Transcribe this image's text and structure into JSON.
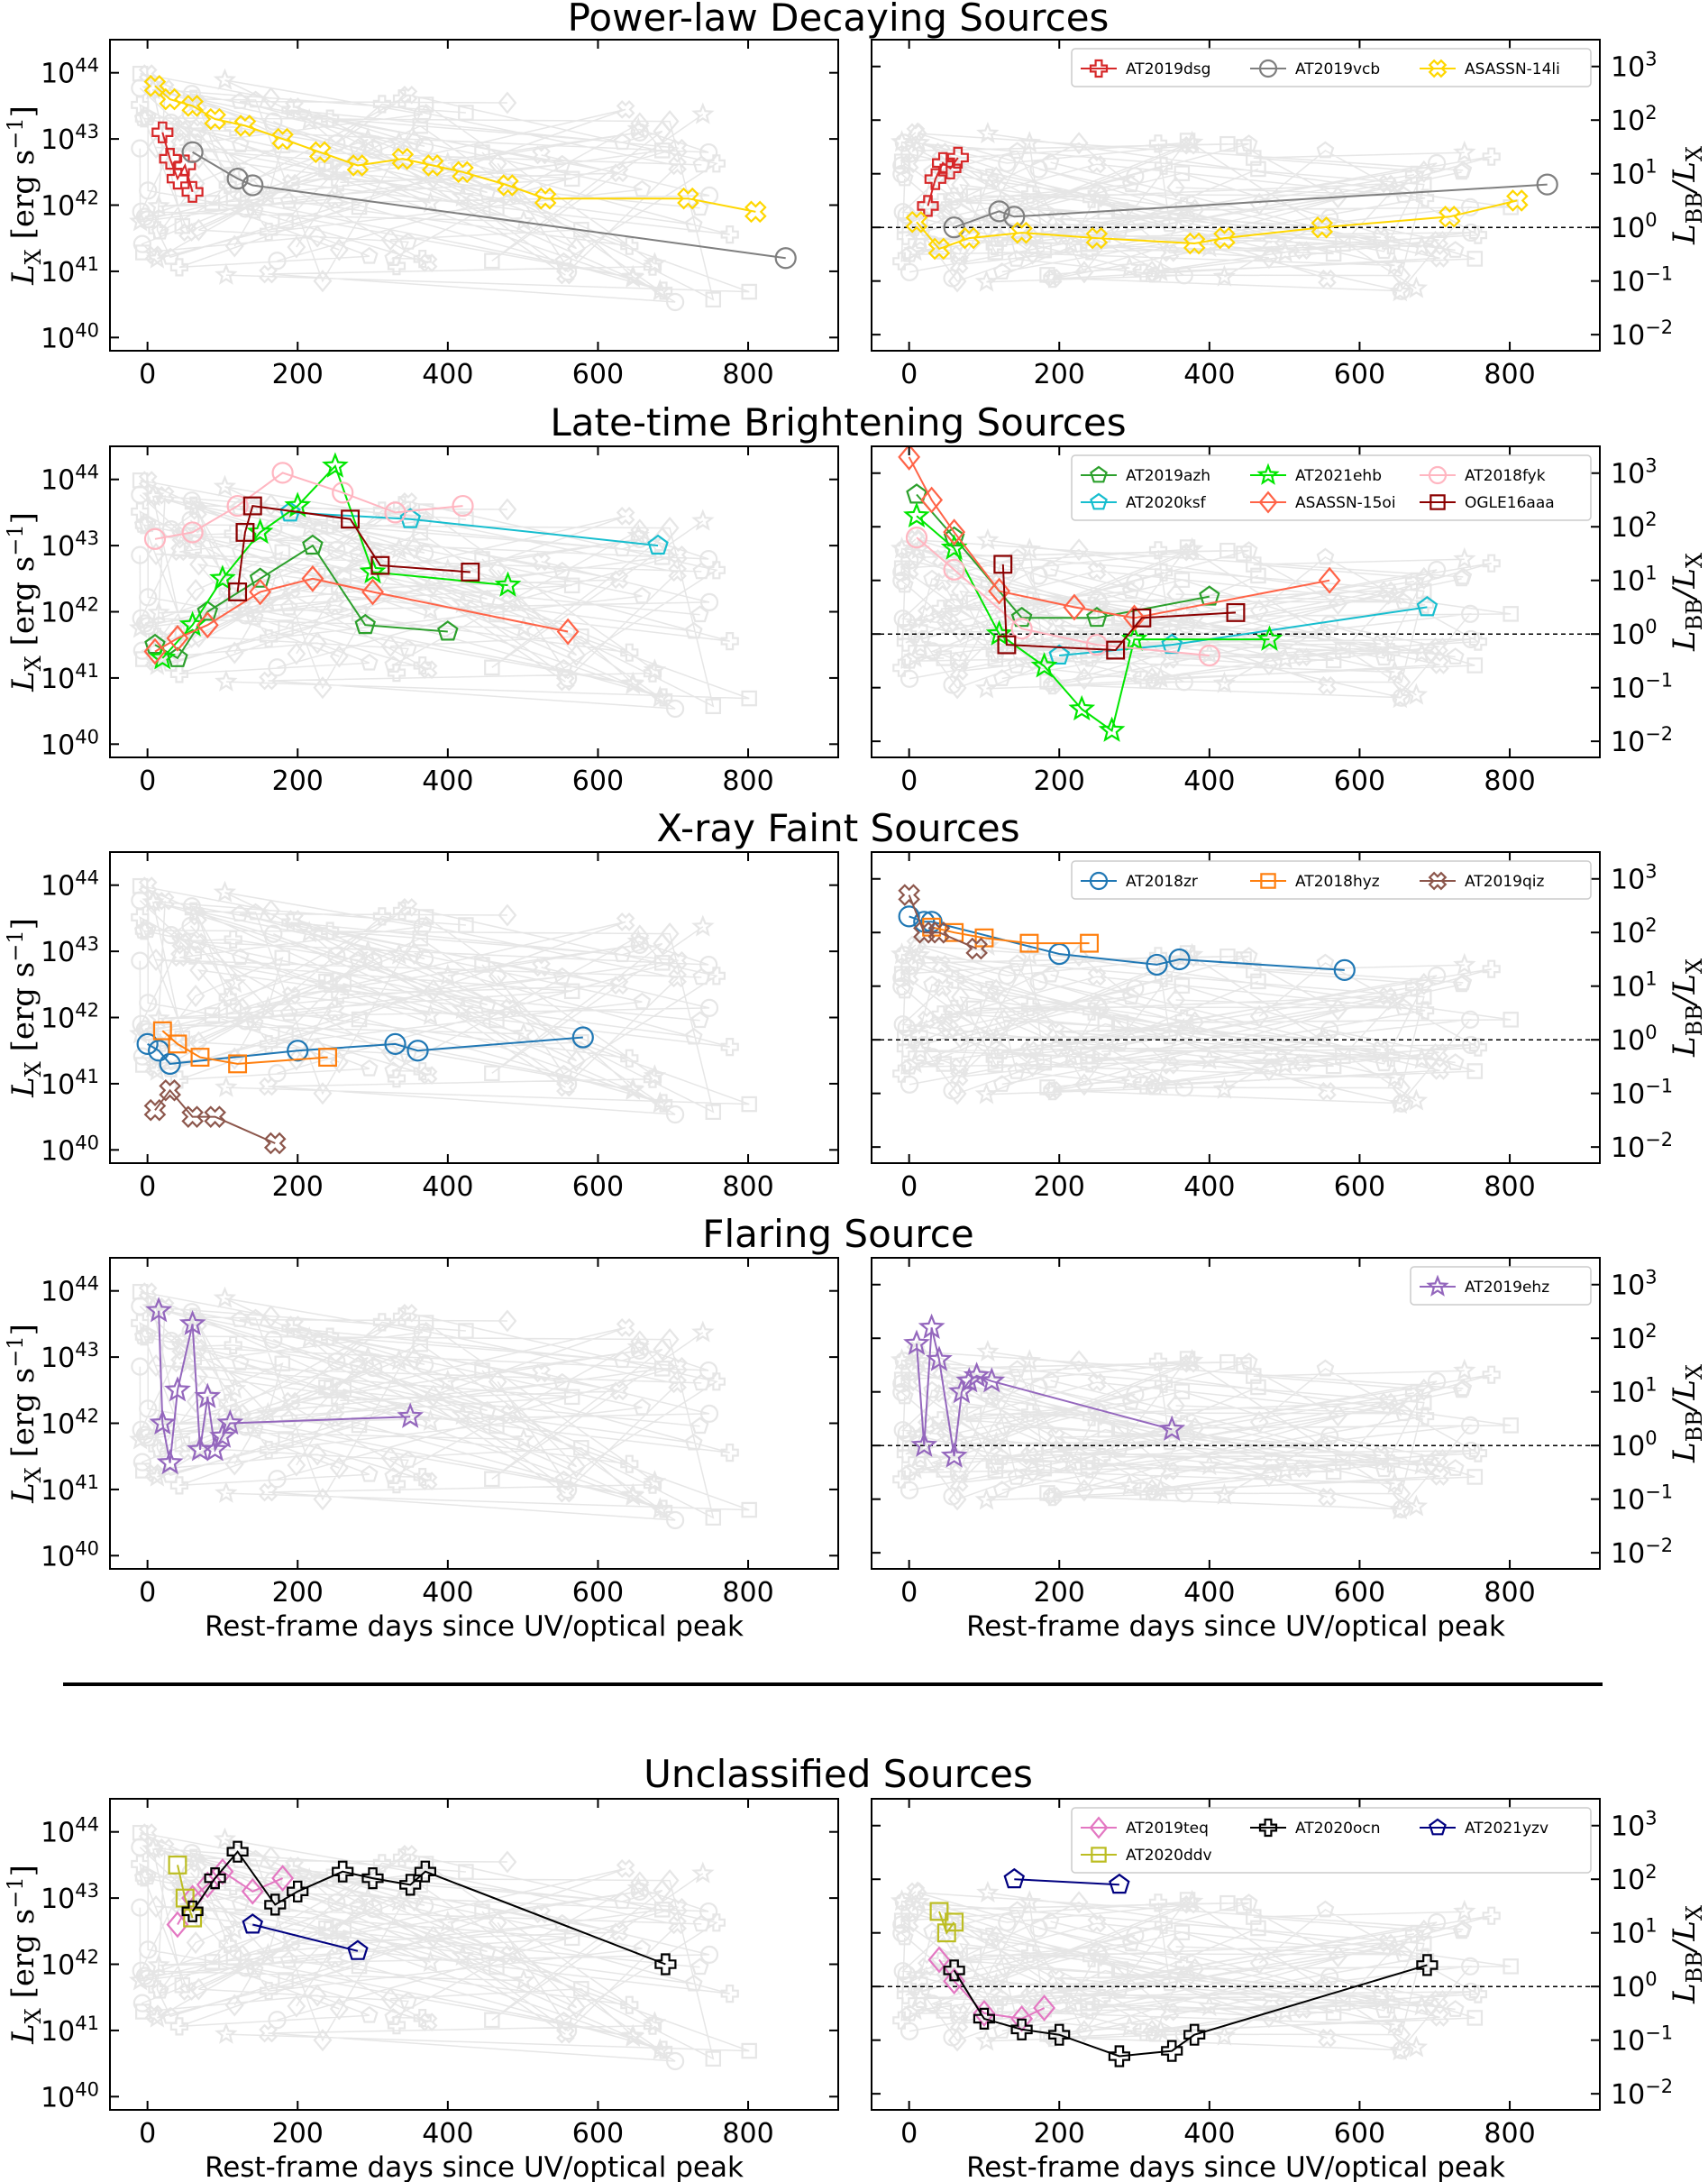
{
  "sections": [
    {
      "title": "Power-law Decaying Sources"
    },
    {
      "title": "Late-time Brightening Sources"
    },
    {
      "title": "X-ray Faint Sources"
    },
    {
      "title": "Flaring Source"
    },
    {
      "title": "Unclassified Sources"
    }
  ],
  "axes": {
    "left_ylabel_main": "L",
    "left_ylabel_sub": "X",
    "left_ylabel_unit": "[erg s",
    "left_ylabel_unit_sup": "−1",
    "left_ylabel_close": "]",
    "right_ylabel_L": "L",
    "right_ylabel_sub1": "BB",
    "right_ylabel_slash": "/L",
    "right_ylabel_sub2": "X",
    "xlabel": "Rest-frame days since UV/optical peak",
    "x_ticks": [
      "0",
      "200",
      "400",
      "600",
      "800"
    ],
    "left_y_ticks": [
      {
        "base": "10",
        "exp": "40"
      },
      {
        "base": "10",
        "exp": "41"
      },
      {
        "base": "10",
        "exp": "42"
      },
      {
        "base": "10",
        "exp": "43"
      },
      {
        "base": "10",
        "exp": "44"
      }
    ],
    "right_y_ticks": [
      {
        "base": "10",
        "exp": "−2"
      },
      {
        "base": "10",
        "exp": "−1"
      },
      {
        "base": "10",
        "exp": "0"
      },
      {
        "base": "10",
        "exp": "1"
      },
      {
        "base": "10",
        "exp": "2"
      },
      {
        "base": "10",
        "exp": "3"
      }
    ]
  },
  "colors": {
    "background_points": "#d9d9d9",
    "AT2019dsg": "#d62728",
    "AT2019vcb": "#7f7f7f",
    "ASASSN-14li": "#ffd700",
    "AT2019azh": "#2ca02c",
    "AT2020ksf": "#17becf",
    "AT2021ehb": "#00e600",
    "ASASSN-15oi": "#ff6347",
    "AT2018fyk": "#ffb6c1",
    "OGLE16aaa": "#8b0000",
    "AT2018zr": "#1f77b4",
    "AT2018hyz": "#ff7f0e",
    "AT2019qiz": "#8c564b",
    "AT2019ehz": "#9467bd",
    "AT2019teq": "#e377c2",
    "AT2020ddv": "#bcbd22",
    "AT2020ocn": "#000000",
    "AT2021yzv": "#000080"
  },
  "chart_data": [
    {
      "type": "scatter",
      "panel": "Power-law Decaying Sources — L_X",
      "xlim": [
        -50,
        920
      ],
      "ylim_log10": [
        39.8,
        44.5
      ],
      "ylabel": "L_X [erg s^-1]",
      "xlabel": "",
      "series": [
        {
          "name": "AT2019dsg",
          "marker": "plus",
          "x": [
            20,
            30,
            40,
            50,
            60
          ],
          "y": [
            43.1,
            42.7,
            42.4,
            42.6,
            42.2
          ]
        },
        {
          "name": "AT2019vcb",
          "marker": "circle",
          "x": [
            60,
            120,
            140,
            850
          ],
          "y": [
            42.8,
            42.4,
            42.3,
            41.2
          ]
        },
        {
          "name": "ASASSN-14li",
          "marker": "x",
          "x": [
            10,
            30,
            60,
            90,
            130,
            180,
            230,
            280,
            340,
            380,
            420,
            480,
            530,
            720,
            810
          ],
          "y": [
            43.8,
            43.6,
            43.5,
            43.3,
            43.2,
            43.0,
            42.8,
            42.6,
            42.7,
            42.6,
            42.5,
            42.3,
            42.1,
            42.1,
            41.9
          ]
        }
      ]
    },
    {
      "type": "scatter",
      "panel": "Power-law Decaying Sources — L_BB/L_X",
      "xlim": [
        -50,
        920
      ],
      "ylim_log10": [
        -2.3,
        3.5
      ],
      "ylabel": "L_BB/L_X",
      "xlabel": "",
      "series": [
        {
          "name": "AT2019dsg",
          "marker": "plus",
          "x": [
            25,
            35,
            45,
            55,
            65
          ],
          "y": [
            0.4,
            0.9,
            1.2,
            1.1,
            1.3
          ]
        },
        {
          "name": "AT2019vcb",
          "marker": "circle",
          "x": [
            60,
            120,
            140,
            850
          ],
          "y": [
            0.0,
            0.3,
            0.2,
            0.8
          ]
        },
        {
          "name": "ASASSN-14li",
          "marker": "x",
          "x": [
            10,
            40,
            80,
            150,
            250,
            380,
            420,
            550,
            720,
            810
          ],
          "y": [
            0.1,
            -0.4,
            -0.2,
            -0.1,
            -0.2,
            -0.3,
            -0.2,
            0.0,
            0.2,
            0.5
          ]
        }
      ]
    },
    {
      "type": "scatter",
      "panel": "Late-time Brightening Sources — L_X",
      "xlim": [
        -50,
        920
      ],
      "ylim_log10": [
        39.8,
        44.5
      ],
      "xlabel": "",
      "series": [
        {
          "name": "AT2019azh",
          "marker": "pentagon",
          "x": [
            10,
            40,
            80,
            150,
            220,
            290,
            400
          ],
          "y": [
            41.5,
            41.3,
            42.0,
            42.5,
            43.0,
            41.8,
            41.7
          ]
        },
        {
          "name": "AT2020ksf",
          "marker": "pentagon",
          "x": [
            190,
            350,
            680
          ],
          "y": [
            43.5,
            43.4,
            43.0
          ]
        },
        {
          "name": "AT2021ehb",
          "marker": "star",
          "x": [
            20,
            60,
            100,
            150,
            200,
            250,
            300,
            480
          ],
          "y": [
            41.3,
            41.8,
            42.5,
            43.2,
            43.6,
            44.2,
            42.6,
            42.4
          ]
        },
        {
          "name": "ASASSN-15oi",
          "marker": "diamond",
          "x": [
            10,
            40,
            80,
            150,
            220,
            300,
            560
          ],
          "y": [
            41.4,
            41.6,
            41.8,
            42.3,
            42.5,
            42.3,
            41.7
          ]
        },
        {
          "name": "AT2018fyk",
          "marker": "circle",
          "x": [
            10,
            60,
            120,
            180,
            260,
            330,
            420
          ],
          "y": [
            43.1,
            43.2,
            43.6,
            44.1,
            43.8,
            43.5,
            43.6
          ]
        },
        {
          "name": "OGLE16aaa",
          "marker": "square",
          "x": [
            120,
            130,
            140,
            270,
            310,
            430
          ],
          "y": [
            42.3,
            43.2,
            43.6,
            43.4,
            42.7,
            42.6
          ]
        }
      ]
    },
    {
      "type": "scatter",
      "panel": "Late-time Brightening Sources — L_BB/L_X",
      "xlim": [
        -50,
        920
      ],
      "ylim_log10": [
        -2.3,
        3.5
      ],
      "xlabel": "",
      "series": [
        {
          "name": "AT2019azh",
          "marker": "pentagon",
          "x": [
            10,
            60,
            150,
            250,
            400
          ],
          "y": [
            2.6,
            1.8,
            0.3,
            0.3,
            0.7
          ]
        },
        {
          "name": "AT2020ksf",
          "marker": "pentagon",
          "x": [
            200,
            350,
            690
          ],
          "y": [
            -0.4,
            -0.2,
            0.5
          ]
        },
        {
          "name": "AT2021ehb",
          "marker": "star",
          "x": [
            10,
            60,
            120,
            180,
            230,
            270,
            300,
            480
          ],
          "y": [
            2.2,
            1.6,
            0.0,
            -0.6,
            -1.4,
            -1.8,
            -0.1,
            -0.1
          ]
        },
        {
          "name": "ASASSN-15oi",
          "marker": "diamond",
          "x": [
            0,
            30,
            60,
            120,
            220,
            300,
            560
          ],
          "y": [
            3.3,
            2.5,
            1.9,
            0.8,
            0.5,
            0.3,
            1.0
          ]
        },
        {
          "name": "AT2018fyk",
          "marker": "circle",
          "x": [
            10,
            60,
            150,
            250,
            400
          ],
          "y": [
            1.8,
            1.2,
            0.1,
            -0.2,
            -0.4
          ]
        },
        {
          "name": "OGLE16aaa",
          "marker": "square",
          "x": [
            125,
            130,
            275,
            310,
            435
          ],
          "y": [
            1.3,
            -0.2,
            -0.3,
            0.3,
            0.4
          ]
        }
      ]
    },
    {
      "type": "scatter",
      "panel": "X-ray Faint Sources — L_X",
      "xlim": [
        -50,
        920
      ],
      "ylim_log10": [
        39.8,
        44.5
      ],
      "xlabel": "",
      "series": [
        {
          "name": "AT2018zr",
          "marker": "circle",
          "x": [
            0,
            15,
            30,
            200,
            330,
            360,
            580
          ],
          "y": [
            41.6,
            41.5,
            41.3,
            41.5,
            41.6,
            41.5,
            41.7
          ]
        },
        {
          "name": "AT2018hyz",
          "marker": "square",
          "x": [
            20,
            40,
            70,
            120,
            240
          ],
          "y": [
            41.8,
            41.6,
            41.4,
            41.3,
            41.4
          ]
        },
        {
          "name": "AT2019qiz",
          "marker": "x",
          "x": [
            10,
            30,
            60,
            90,
            170
          ],
          "y": [
            40.6,
            40.9,
            40.5,
            40.5,
            40.1
          ]
        }
      ]
    },
    {
      "type": "scatter",
      "panel": "X-ray Faint Sources — L_BB/L_X",
      "xlim": [
        -50,
        920
      ],
      "ylim_log10": [
        -2.3,
        3.5
      ],
      "xlabel": "",
      "series": [
        {
          "name": "AT2018zr",
          "marker": "circle",
          "x": [
            0,
            20,
            30,
            200,
            330,
            360,
            580
          ],
          "y": [
            2.3,
            2.2,
            2.2,
            1.6,
            1.4,
            1.5,
            1.3
          ]
        },
        {
          "name": "AT2018hyz",
          "marker": "square",
          "x": [
            30,
            60,
            100,
            160,
            240
          ],
          "y": [
            2.1,
            2.0,
            1.9,
            1.8,
            1.8
          ]
        },
        {
          "name": "AT2019qiz",
          "marker": "x",
          "x": [
            0,
            20,
            40,
            90
          ],
          "y": [
            2.7,
            2.0,
            2.0,
            1.7
          ]
        }
      ]
    },
    {
      "type": "scatter",
      "panel": "Flaring Source — L_X",
      "xlim": [
        -50,
        920
      ],
      "ylim_log10": [
        39.8,
        44.5
      ],
      "xlabel": "Rest-frame days since UV/optical peak",
      "series": [
        {
          "name": "AT2019ehz",
          "marker": "star",
          "x": [
            15,
            20,
            30,
            40,
            60,
            70,
            80,
            90,
            100,
            110,
            350
          ],
          "y": [
            43.7,
            42.0,
            41.4,
            42.5,
            43.5,
            41.6,
            42.4,
            41.6,
            41.8,
            42.0,
            42.1
          ]
        }
      ]
    },
    {
      "type": "scatter",
      "panel": "Flaring Source — L_BB/L_X",
      "xlim": [
        -50,
        920
      ],
      "ylim_log10": [
        -2.3,
        3.5
      ],
      "xlabel": "Rest-frame days since UV/optical peak",
      "series": [
        {
          "name": "AT2019ehz",
          "marker": "star",
          "x": [
            10,
            20,
            30,
            40,
            60,
            70,
            80,
            90,
            110,
            350
          ],
          "y": [
            1.9,
            0.0,
            2.2,
            1.6,
            -0.2,
            1.0,
            1.2,
            1.3,
            1.2,
            0.3
          ]
        }
      ]
    },
    {
      "type": "scatter",
      "panel": "Unclassified Sources — L_X",
      "xlim": [
        -50,
        920
      ],
      "ylim_log10": [
        39.8,
        44.5
      ],
      "xlabel": "Rest-frame days since UV/optical peak",
      "series": [
        {
          "name": "AT2019teq",
          "marker": "diamond",
          "x": [
            40,
            60,
            80,
            100,
            140,
            180
          ],
          "y": [
            42.6,
            43.0,
            43.2,
            43.4,
            43.1,
            43.3
          ]
        },
        {
          "name": "AT2020ddv",
          "marker": "square",
          "x": [
            40,
            50,
            60
          ],
          "y": [
            43.5,
            43.0,
            42.7
          ]
        },
        {
          "name": "AT2020ocn",
          "marker": "plus",
          "x": [
            60,
            90,
            120,
            170,
            200,
            260,
            300,
            350,
            370,
            690
          ],
          "y": [
            42.8,
            43.3,
            43.7,
            42.9,
            43.1,
            43.4,
            43.3,
            43.2,
            43.4,
            42.0
          ]
        },
        {
          "name": "AT2021yzv",
          "marker": "pentagon",
          "x": [
            140,
            280
          ],
          "y": [
            42.6,
            42.2
          ]
        }
      ]
    },
    {
      "type": "scatter",
      "panel": "Unclassified Sources — L_BB/L_X",
      "xlim": [
        -50,
        920
      ],
      "ylim_log10": [
        -2.3,
        3.5
      ],
      "xlabel": "Rest-frame days since UV/optical peak",
      "series": [
        {
          "name": "AT2019teq",
          "marker": "diamond",
          "x": [
            40,
            60,
            100,
            150,
            180
          ],
          "y": [
            0.5,
            0.1,
            -0.5,
            -0.6,
            -0.4
          ]
        },
        {
          "name": "AT2020ddv",
          "marker": "square",
          "x": [
            40,
            50,
            60
          ],
          "y": [
            1.4,
            1.0,
            1.2
          ]
        },
        {
          "name": "AT2020ocn",
          "marker": "plus",
          "x": [
            60,
            100,
            150,
            200,
            280,
            350,
            380,
            690
          ],
          "y": [
            0.3,
            -0.6,
            -0.8,
            -0.9,
            -1.3,
            -1.2,
            -0.9,
            0.4
          ]
        },
        {
          "name": "AT2021yzv",
          "marker": "pentagon",
          "x": [
            140,
            280
          ],
          "y": [
            2.0,
            1.9
          ]
        }
      ]
    }
  ],
  "legends": [
    {
      "panel": "Power-law Decaying Sources — L_BB/L_X",
      "entries": [
        {
          "name": "AT2019dsg",
          "marker": "plus"
        },
        {
          "name": "AT2019vcb",
          "marker": "circle"
        },
        {
          "name": "ASASSN-14li",
          "marker": "x"
        }
      ]
    },
    {
      "panel": "Late-time Brightening Sources — L_BB/L_X",
      "entries": [
        {
          "name": "AT2019azh",
          "marker": "pentagon"
        },
        {
          "name": "AT2021ehb",
          "marker": "star"
        },
        {
          "name": "AT2018fyk",
          "marker": "circle"
        },
        {
          "name": "AT2020ksf",
          "marker": "pentagon"
        },
        {
          "name": "ASASSN-15oi",
          "marker": "diamond"
        },
        {
          "name": "OGLE16aaa",
          "marker": "square"
        }
      ]
    },
    {
      "panel": "X-ray Faint Sources — L_BB/L_X",
      "entries": [
        {
          "name": "AT2018zr",
          "marker": "circle"
        },
        {
          "name": "AT2018hyz",
          "marker": "square"
        },
        {
          "name": "AT2019qiz",
          "marker": "x"
        }
      ]
    },
    {
      "panel": "Flaring Source — L_BB/L_X",
      "entries": [
        {
          "name": "AT2019ehz",
          "marker": "star"
        }
      ]
    },
    {
      "panel": "Unclassified Sources — L_BB/L_X",
      "entries": [
        {
          "name": "AT2019teq",
          "marker": "diamond"
        },
        {
          "name": "AT2020ocn",
          "marker": "plus"
        },
        {
          "name": "AT2021yzv",
          "marker": "pentagon"
        },
        {
          "name": "AT2020ddv",
          "marker": "square"
        }
      ]
    }
  ]
}
